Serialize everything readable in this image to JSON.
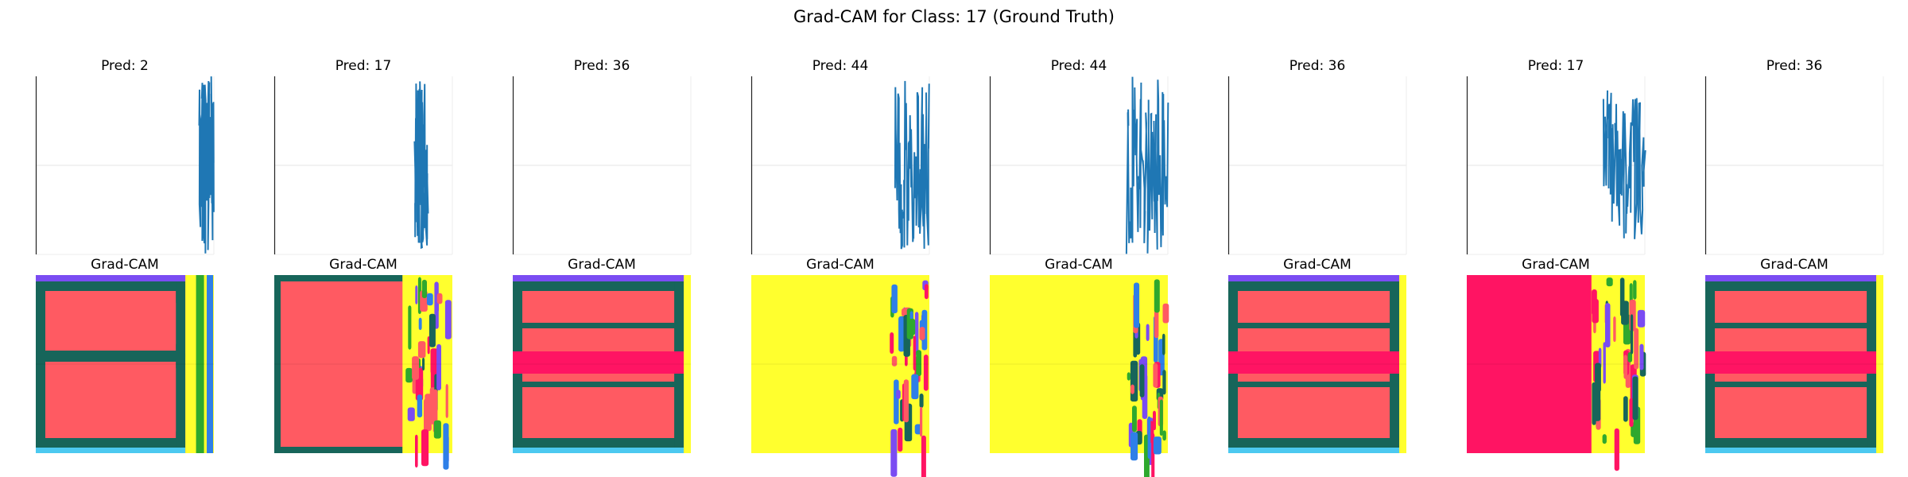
{
  "figure": {
    "title": "Grad-CAM for Class: 17 (Ground Truth)"
  },
  "colors": {
    "coral": "#ff5a62",
    "hot_pink": "#ff1463",
    "yellow": "#ffff2e",
    "dark_teal": "#17655a",
    "blue": "#2e7fe8",
    "green": "#2ea82e",
    "purple": "#7a4cf2",
    "cyan": "#4cc9f0",
    "line_blue": "#1f77b4"
  },
  "chart_data": [
    {
      "type": "line",
      "title": "Pred: 2",
      "heatmap_title": "Grad-CAM",
      "heatmap_style": "bands",
      "heatmap_base": "coral"
    },
    {
      "type": "line",
      "title": "Pred: 17",
      "heatmap_title": "Grad-CAM",
      "heatmap_style": "full",
      "heatmap_base": "coral"
    },
    {
      "type": "line",
      "title": "Pred: 36",
      "heatmap_title": "Grad-CAM",
      "heatmap_style": "bands",
      "heatmap_base": "coral"
    },
    {
      "type": "line",
      "title": "Pred: 44",
      "heatmap_title": "Grad-CAM",
      "heatmap_style": "full",
      "heatmap_base": "yellow"
    },
    {
      "type": "line",
      "title": "Pred: 44",
      "heatmap_title": "Grad-CAM",
      "heatmap_style": "full",
      "heatmap_base": "yellow"
    },
    {
      "type": "line",
      "title": "Pred: 36",
      "heatmap_title": "Grad-CAM",
      "heatmap_style": "bands",
      "heatmap_base": "coral"
    },
    {
      "type": "line",
      "title": "Pred: 17",
      "heatmap_title": "Grad-CAM",
      "heatmap_style": "full",
      "heatmap_base": "hot_pink"
    },
    {
      "type": "line",
      "title": "Pred: 36",
      "heatmap_title": "Grad-CAM",
      "heatmap_style": "bands",
      "heatmap_base": "coral"
    }
  ]
}
